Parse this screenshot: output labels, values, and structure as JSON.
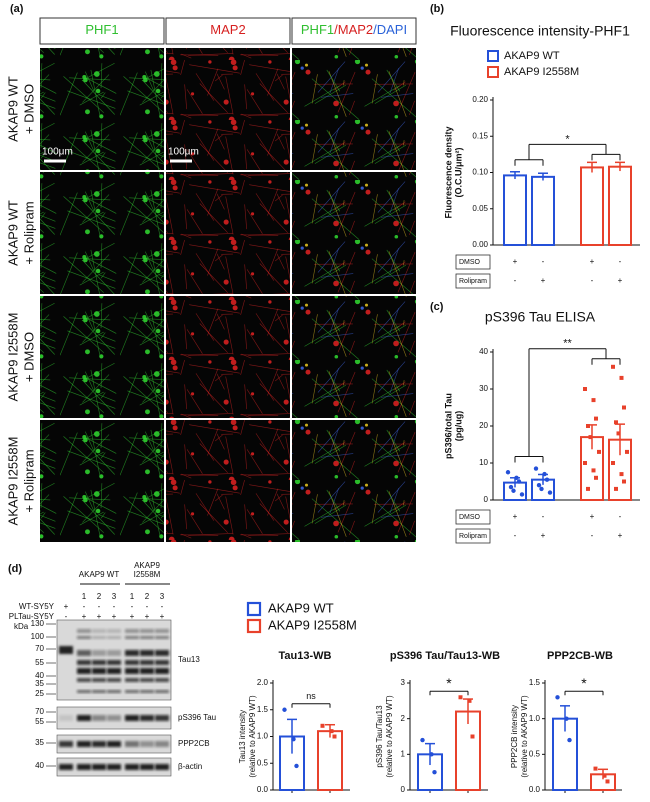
{
  "panel_a": {
    "label": "(a)",
    "column_headers": [
      [
        "PHF1"
      ],
      [
        "MAP2"
      ],
      [
        "PHF1",
        "/MAP2",
        "/DAPI"
      ]
    ],
    "row_labels": [
      [
        "AKAP9 WT",
        "+ DMSO"
      ],
      [
        "AKAP9 WT",
        "+ Rolipram"
      ],
      [
        "AKAP9 I2558M",
        "+ DMSO"
      ],
      [
        "AKAP9 I2558M",
        "+ Rolipram"
      ]
    ],
    "scale_bar": "100μm"
  },
  "panel_labels": [
    "(b)",
    "(c)"
  ],
  "chart_data": [
    {
      "type": "bar",
      "title": "Fluorescence intensity-PHF1",
      "y_label": [
        "Fluorescence density",
        "(O.C.U/μm²)"
      ],
      "ylim": [
        0,
        0.2
      ],
      "yticks": [
        {
          "value": 0,
          "label": "0.00"
        },
        {
          "value": 0.05,
          "label": "0.05"
        },
        {
          "value": 0.1,
          "label": "0.10"
        },
        {
          "value": 0.15,
          "label": "0.15"
        },
        {
          "value": 0.2,
          "label": "0.20"
        }
      ],
      "series": [
        {
          "name": "AKAP9 WT",
          "color": "#2450d8",
          "values": [
            0.096,
            0.094
          ],
          "errors": [
            0.005,
            0.005
          ]
        },
        {
          "name": "AKAP9 I2558M",
          "color": "#e8412b",
          "values": [
            0.107,
            0.108
          ],
          "errors": [
            0.007,
            0.006
          ]
        }
      ],
      "treatments": [
        {
          "name": "DMSO",
          "signs": [
            "+",
            "-",
            "+",
            "-"
          ]
        },
        {
          "name": "Rolipram",
          "signs": [
            "-",
            "+",
            "-",
            "+"
          ]
        }
      ],
      "significance": "*",
      "legend": true
    },
    {
      "type": "bar",
      "title": "pS396 Tau ELISA",
      "y_label": [
        "pS396/total Tau",
        "(pg/ug)"
      ],
      "ylim": [
        0,
        40
      ],
      "yticks": [
        0,
        10,
        20,
        30,
        40
      ],
      "series": [
        {
          "color": "#2450d8",
          "values": [
            4.7,
            5.5
          ],
          "errors": [
            1.3,
            1.4
          ],
          "points": [
            [
              7.5,
              6,
              5,
              3.5,
              2.5,
              1.5
            ],
            [
              8.5,
              7,
              5.5,
              4,
              3,
              2
            ]
          ]
        },
        {
          "color": "#e8412b",
          "values": [
            17,
            16.3
          ],
          "errors": [
            3.3,
            4.2
          ],
          "points": [
            [
              30,
              27,
              22,
              20,
              17,
              13,
              10,
              8,
              6,
              3
            ],
            [
              36,
              33,
              25,
              21,
              18,
              13,
              10,
              7,
              5,
              3
            ]
          ]
        }
      ],
      "treatments": [
        {
          "name": "DMSO",
          "signs": [
            "+",
            "-",
            "+",
            "-"
          ]
        },
        {
          "name": "Rolipram",
          "signs": [
            "-",
            "+",
            "-",
            "+"
          ]
        }
      ],
      "significance": "**"
    },
    {
      "type": "bar",
      "title": "Tau13-WB",
      "y_label": [
        "Tau13 intensity",
        "(relative to AKAP9 WT)"
      ],
      "ylim": [
        0,
        2
      ],
      "yticks": [
        {
          "value": 0,
          "label": "0.0"
        },
        0.5,
        {
          "value": 1,
          "label": "1.0"
        },
        1.5,
        {
          "value": 2,
          "label": "2.0"
        }
      ],
      "series": [
        {
          "color": "#2450d8",
          "values": [
            1.0
          ],
          "errors": [
            0.32
          ],
          "points": [
            [
              1.5,
              0.95,
              0.45
            ]
          ]
        },
        {
          "color": "#e8412b",
          "values": [
            1.1
          ],
          "errors": [
            0.12
          ],
          "points": [
            [
              1.2,
              1.1,
              1.0
            ]
          ]
        }
      ],
      "significance": "ns"
    },
    {
      "type": "bar",
      "title": "pS396 Tau/Tau13-WB",
      "y_label": [
        "pS396 Tau/Tau13",
        "(relative to AKAP9 WT)"
      ],
      "ylim": [
        0,
        3
      ],
      "yticks": [
        0,
        1,
        2,
        3
      ],
      "series": [
        {
          "color": "#2450d8",
          "values": [
            1.0
          ],
          "errors": [
            0.3
          ],
          "points": [
            [
              1.4,
              1.0,
              0.5
            ]
          ]
        },
        {
          "color": "#e8412b",
          "values": [
            2.2
          ],
          "errors": [
            0.35
          ],
          "points": [
            [
              2.6,
              2.5,
              1.5
            ]
          ]
        }
      ],
      "significance": "*"
    },
    {
      "type": "bar",
      "title": "PPP2CB-WB",
      "y_label": [
        "PPP2CB intensity",
        "(relative to AKAP9 WT)"
      ],
      "ylim": [
        0,
        1.5
      ],
      "yticks": [
        {
          "value": 0,
          "label": "0.0"
        },
        0.5,
        {
          "value": 1,
          "label": "1.0"
        },
        1.5
      ],
      "series": [
        {
          "color": "#2450d8",
          "values": [
            1.0
          ],
          "errors": [
            0.18
          ],
          "points": [
            [
              1.3,
              1.0,
              0.7
            ]
          ]
        },
        {
          "color": "#e8412b",
          "values": [
            0.22
          ],
          "errors": [
            0.07
          ],
          "points": [
            [
              0.3,
              0.2,
              0.12
            ]
          ]
        }
      ],
      "significance": "*"
    }
  ],
  "panel_d": {
    "label": "(d)",
    "legend": [
      {
        "name": "AKAP9 WT",
        "color": "#2450d8"
      },
      {
        "name": "AKAP9 I2558M",
        "color": "#e8412b"
      }
    ],
    "groups": [
      [
        "AKAP9 WT"
      ],
      [
        "AKAP9",
        "I2558M"
      ]
    ],
    "lane_numbers": [
      "1",
      "2",
      "3"
    ],
    "cell_rows": [
      {
        "name": "WT-SY5Y",
        "signs": [
          "+",
          "-",
          "-",
          "-",
          "-",
          "-",
          "-"
        ]
      },
      {
        "name": "PLTau-SY5Y",
        "signs": [
          "-",
          "+",
          "+",
          "+",
          "+",
          "+",
          "+"
        ]
      }
    ],
    "unit": "kDa",
    "blots": [
      {
        "protein": "Tau13",
        "markers": [
          130,
          100,
          70,
          55,
          40,
          35,
          25
        ]
      },
      {
        "protein": "pS396 Tau",
        "markers": [
          70,
          55
        ]
      },
      {
        "protein": "PPP2CB",
        "markers": [
          35
        ]
      },
      {
        "protein": "β-actin",
        "markers": [
          40
        ]
      }
    ]
  }
}
